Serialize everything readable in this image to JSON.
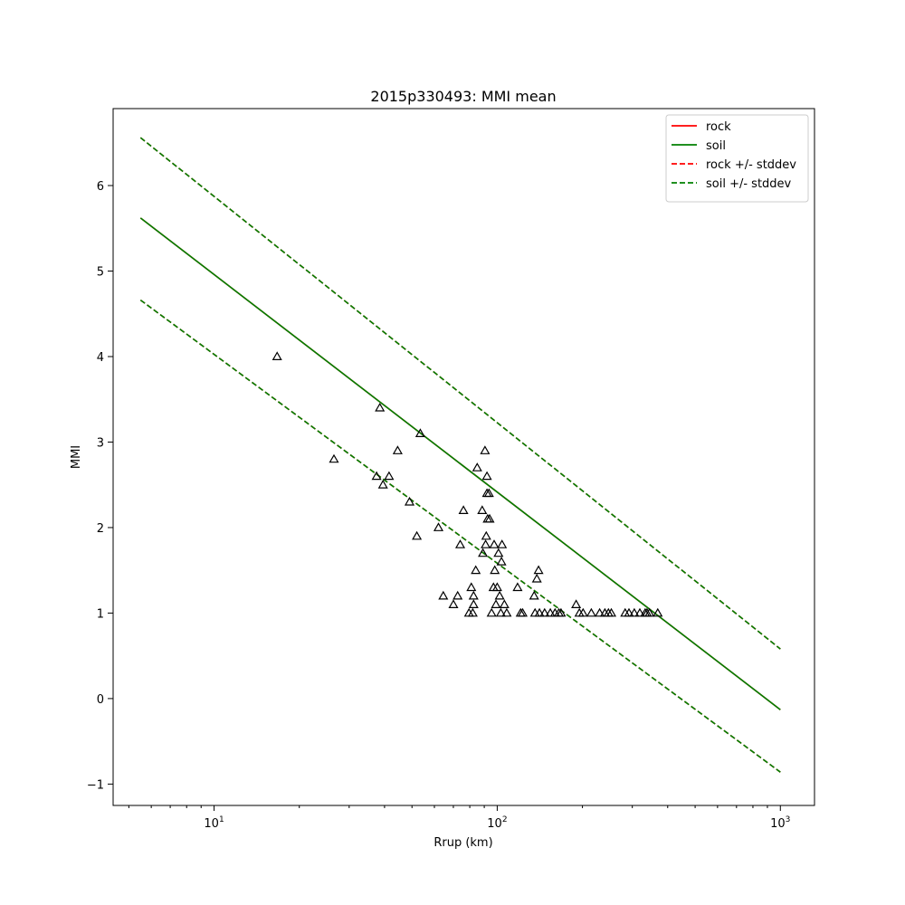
{
  "chart_data": {
    "type": "line",
    "title": "2015p330493: MMI mean",
    "xlabel": "Rrup (km)",
    "ylabel": "MMI",
    "xscale": "log",
    "xlim": [
      4.4,
      1320
    ],
    "ylim": [
      -1.25,
      6.9
    ],
    "x_ticks": [
      {
        "value": 10,
        "base": "10",
        "exp": "1"
      },
      {
        "value": 100,
        "base": "10",
        "exp": "2"
      },
      {
        "value": 1000,
        "base": "10",
        "exp": "3"
      }
    ],
    "y_ticks": [
      {
        "value": -1,
        "label": "−1"
      },
      {
        "value": 0,
        "label": "0"
      },
      {
        "value": 1,
        "label": "1"
      },
      {
        "value": 2,
        "label": "2"
      },
      {
        "value": 3,
        "label": "3"
      },
      {
        "value": 4,
        "label": "4"
      },
      {
        "value": 5,
        "label": "5"
      },
      {
        "value": 6,
        "label": "6"
      }
    ],
    "grid": false,
    "legend_position": "top-right",
    "series": [
      {
        "name": "rock",
        "color": "#ff0000",
        "style": "solid",
        "x": [
          5.5,
          1000
        ],
        "y": [
          5.62,
          -0.13
        ]
      },
      {
        "name": "soil",
        "color": "#008000",
        "style": "solid",
        "x": [
          5.5,
          1000
        ],
        "y": [
          5.62,
          -0.13
        ]
      },
      {
        "name": "rock +/- stddev",
        "color": "#ff0000",
        "style": "dashed",
        "x": [
          5.5,
          1000
        ],
        "y": [
          6.56,
          0.58
        ],
        "lower_y": [
          4.66,
          -0.86
        ]
      },
      {
        "name": "soil +/- stddev",
        "color": "#008000",
        "style": "dashed",
        "x": [
          5.5,
          1000
        ],
        "y": [
          6.56,
          0.58
        ],
        "lower_y": [
          4.66,
          -0.86
        ]
      }
    ],
    "observations": {
      "marker": "triangle",
      "color": "#000000",
      "points": [
        [
          16.7,
          4.0
        ],
        [
          26.5,
          2.8
        ],
        [
          37.5,
          2.6
        ],
        [
          38.5,
          3.4
        ],
        [
          39.5,
          2.5
        ],
        [
          41.5,
          2.6
        ],
        [
          44.5,
          2.9
        ],
        [
          49.0,
          2.3
        ],
        [
          52.0,
          1.9
        ],
        [
          53.5,
          3.1
        ],
        [
          62.0,
          2.0
        ],
        [
          64.5,
          1.2
        ],
        [
          70.0,
          1.1
        ],
        [
          72.5,
          1.2
        ],
        [
          74.0,
          1.8
        ],
        [
          76.0,
          2.2
        ],
        [
          79.5,
          1.0
        ],
        [
          81.0,
          1.3
        ],
        [
          82.0,
          1.0
        ],
        [
          82.5,
          1.1
        ],
        [
          82.5,
          1.2
        ],
        [
          84.0,
          1.5
        ],
        [
          85.0,
          2.7
        ],
        [
          88.5,
          2.2
        ],
        [
          89.0,
          1.7
        ],
        [
          90.5,
          2.9
        ],
        [
          91.0,
          1.8
        ],
        [
          91.5,
          1.9
        ],
        [
          92.0,
          2.6
        ],
        [
          92.0,
          2.4
        ],
        [
          92.5,
          2.1
        ],
        [
          93.5,
          2.4
        ],
        [
          94.0,
          2.1
        ],
        [
          95.5,
          1.0
        ],
        [
          97.0,
          1.3
        ],
        [
          97.5,
          1.8
        ],
        [
          98.0,
          1.5
        ],
        [
          99.0,
          1.1
        ],
        [
          100.0,
          1.3
        ],
        [
          101.0,
          1.7
        ],
        [
          102.0,
          1.2
        ],
        [
          103.0,
          1.0
        ],
        [
          103.5,
          1.6
        ],
        [
          104.0,
          1.8
        ],
        [
          106.0,
          1.1
        ],
        [
          108.0,
          1.0
        ],
        [
          118.0,
          1.3
        ],
        [
          121.0,
          1.0
        ],
        [
          123.0,
          1.0
        ],
        [
          135.0,
          1.2
        ],
        [
          136.0,
          1.0
        ],
        [
          138.0,
          1.4
        ],
        [
          140.0,
          1.5
        ],
        [
          141.0,
          1.0
        ],
        [
          147.0,
          1.0
        ],
        [
          154.0,
          1.0
        ],
        [
          160.0,
          1.0
        ],
        [
          165.0,
          1.0
        ],
        [
          168.0,
          1.0
        ],
        [
          190.0,
          1.1
        ],
        [
          195.0,
          1.0
        ],
        [
          201.0,
          1.0
        ],
        [
          215.0,
          1.0
        ],
        [
          230.0,
          1.0
        ],
        [
          240.0,
          1.0
        ],
        [
          247.0,
          1.0
        ],
        [
          253.0,
          1.0
        ],
        [
          283.0,
          1.0
        ],
        [
          292.0,
          1.0
        ],
        [
          305.0,
          1.0
        ],
        [
          319.0,
          1.0
        ],
        [
          333.0,
          1.0
        ],
        [
          338.0,
          1.0
        ],
        [
          345.0,
          1.0
        ],
        [
          369.0,
          1.0
        ]
      ]
    }
  }
}
